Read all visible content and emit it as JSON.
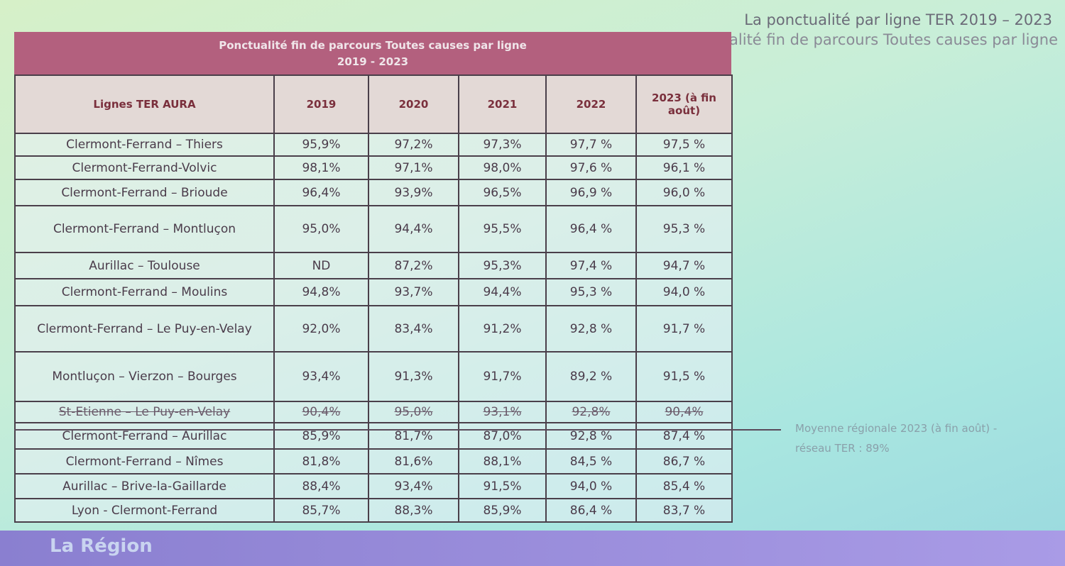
{
  "header": {
    "title": "La ponctualité par ligne TER 2019 – 2023",
    "subtitle": "Ponctualité fin de parcours Toutes causes par ligne"
  },
  "table": {
    "title": "Ponctualité fin de parcours Toutes causes par ligne",
    "period": "2019 - 2023",
    "columns": [
      "Lignes TER AURA",
      "2019",
      "2020",
      "2021",
      "2022",
      "2023 (à fin août)"
    ],
    "rows": [
      [
        "Clermont-Ferrand – Thiers",
        "95,9%",
        "97,2%",
        "97,3%",
        "97,7 %",
        "97,5 %"
      ],
      [
        "Clermont-Ferrand-Volvic",
        "98,1%",
        "97,1%",
        "98,0%",
        "97,6 %",
        "96,1 %"
      ],
      [
        "Clermont-Ferrand – Brioude",
        "96,4%",
        "93,9%",
        "96,5%",
        "96,9 %",
        "96,0 %"
      ],
      [
        "Clermont-Ferrand – Montluçon",
        "95,0%",
        "94,4%",
        "95,5%",
        "96,4 %",
        "95,3 %"
      ],
      [
        "Aurillac – Toulouse",
        "ND",
        "87,2%",
        "95,3%",
        "97,4 %",
        "94,7 %"
      ],
      [
        "Clermont-Ferrand – Moulins",
        "94,8%",
        "93,7%",
        "94,4%",
        "95,3 %",
        "94,0 %"
      ],
      [
        "Clermont-Ferrand – Le Puy-en-Velay",
        "92,0%",
        "83,4%",
        "91,2%",
        "92,8 %",
        "91,7 %"
      ],
      [
        "Montluçon – Vierzon – Bourges",
        "93,4%",
        "91,3%",
        "91,7%",
        "89,2 %",
        "91,5 %"
      ],
      [
        "St-Etienne – Le Puy-en-Velay",
        "90,4%",
        "95,0%",
        "93,1%",
        "92,8%",
        "90,4%"
      ],
      [
        "Clermont-Ferrand – Aurillac",
        "85,9%",
        "81,7%",
        "87,0%",
        "92,8 %",
        "87,4 %"
      ],
      [
        "Clermont-Ferrand – Nîmes",
        "81,8%",
        "81,6%",
        "88,1%",
        "84,5 %",
        "86,7 %"
      ],
      [
        "Aurillac – Brive-la-Gaillarde",
        "88,4%",
        "93,4%",
        "91,5%",
        "94,0 %",
        "85,4 %"
      ],
      [
        "Lyon - Clermont-Ferrand",
        "85,7%",
        "88,3%",
        "85,9%",
        "86,4 %",
        "83,7 %"
      ]
    ]
  },
  "note": "Moyenne régionale 2023 (à fin août) - réseau TER : 89%",
  "footer": {
    "logo": "La Région"
  }
}
